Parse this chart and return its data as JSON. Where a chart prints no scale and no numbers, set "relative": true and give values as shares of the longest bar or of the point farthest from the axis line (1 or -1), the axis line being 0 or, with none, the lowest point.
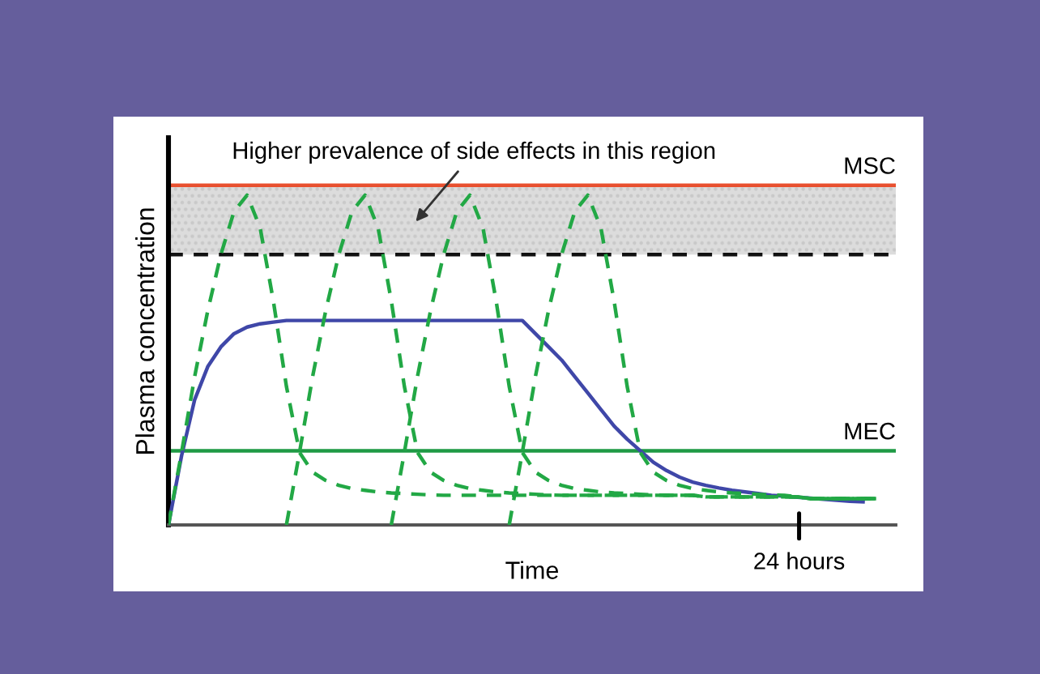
{
  "chart_data": {
    "type": "line",
    "relative": true,
    "xlabel": "Time",
    "ylabel": "Plasma concentration",
    "categories": [
      null,
      null,
      null,
      null,
      null,
      null,
      null,
      null,
      null,
      null,
      null,
      null,
      null,
      null,
      null,
      null,
      null,
      null,
      null,
      null,
      null,
      null,
      null,
      null,
      null,
      null,
      null,
      null,
      null,
      null,
      null,
      null,
      null,
      null,
      null,
      null,
      null,
      null,
      null,
      null,
      null,
      null,
      null,
      null,
      null,
      null,
      null,
      null,
      null,
      null,
      null,
      null,
      null,
      null,
      null,
      null
    ],
    "series": [
      {
        "color": "#3f47a8",
        "line_style": "solid",
        "values": [
          0,
          0.21,
          0.38,
          0.48,
          0.54,
          0.58,
          0.6,
          0.61,
          0.615,
          0.62,
          0.62,
          0.62,
          0.62,
          0.62,
          0.62,
          0.62,
          0.62,
          0.62,
          0.62,
          0.62,
          0.62,
          0.62,
          0.62,
          0.62,
          0.62,
          0.62,
          0.62,
          0.62,
          0.58,
          0.54,
          0.5,
          0.45,
          0.4,
          0.35,
          0.3,
          0.26,
          0.225,
          0.19,
          0.165,
          0.145,
          0.13,
          0.12,
          0.112,
          0.105,
          0.1,
          0.095,
          0.09,
          0.087,
          0.084,
          0.081,
          0.078,
          0.075,
          0.072,
          0.07,
          null,
          null
        ]
      },
      {
        "color": "#22a845",
        "line_style": "dashed",
        "values": [
          0,
          0.22,
          0.45,
          0.65,
          0.82,
          0.95,
          1,
          0.9,
          0.68,
          0.42,
          0.22,
          0.16,
          0.135,
          0.12,
          0.11,
          0.105,
          0.1,
          0.097,
          0.095,
          0.093,
          0.091,
          0.09,
          0.09,
          0.09,
          0.09,
          0.09,
          0.09,
          0.09,
          0.09,
          0.09,
          0.09,
          0.09,
          0.09,
          0.09,
          0.09,
          0.09,
          0.09,
          0.09,
          0.09,
          0.09,
          0.09,
          0.085,
          0.085,
          0.085,
          0.085,
          0.085,
          0.085,
          0.085,
          0.085,
          0.08,
          0.08,
          0.08,
          0.08,
          0.08,
          0.08,
          null
        ]
      },
      {
        "color": "#22a845",
        "line_style": "dashed",
        "values": [
          null,
          null,
          null,
          null,
          null,
          null,
          null,
          null,
          null,
          0,
          0.22,
          0.45,
          0.65,
          0.82,
          0.95,
          1,
          0.9,
          0.68,
          0.42,
          0.22,
          0.16,
          0.135,
          0.12,
          0.11,
          0.105,
          0.1,
          0.097,
          0.095,
          0.093,
          0.091,
          0.09,
          0.09,
          0.09,
          0.09,
          0.09,
          0.09,
          0.09,
          0.09,
          0.09,
          0.09,
          0.09,
          0.085,
          0.085,
          0.085,
          0.085,
          0.085,
          0.085,
          0.085,
          0.085,
          0.08,
          0.08,
          0.08,
          0.08,
          0.08,
          0.08,
          null
        ]
      },
      {
        "color": "#22a845",
        "line_style": "dashed",
        "values": [
          null,
          null,
          null,
          null,
          null,
          null,
          null,
          null,
          null,
          null,
          null,
          null,
          null,
          null,
          null,
          null,
          null,
          0,
          0.22,
          0.45,
          0.65,
          0.82,
          0.95,
          1,
          0.9,
          0.68,
          0.42,
          0.22,
          0.16,
          0.135,
          0.12,
          0.11,
          0.105,
          0.1,
          0.097,
          0.095,
          0.093,
          0.091,
          0.09,
          0.09,
          0.09,
          0.085,
          0.085,
          0.085,
          0.085,
          0.085,
          0.085,
          0.085,
          0.085,
          0.08,
          0.08,
          0.08,
          0.08,
          0.08,
          0.08,
          null
        ]
      },
      {
        "color": "#22a845",
        "line_style": "dashed",
        "values": [
          null,
          null,
          null,
          null,
          null,
          null,
          null,
          null,
          null,
          null,
          null,
          null,
          null,
          null,
          null,
          null,
          null,
          null,
          null,
          null,
          null,
          null,
          null,
          null,
          null,
          null,
          0,
          0.22,
          0.45,
          0.65,
          0.82,
          0.95,
          1,
          0.9,
          0.68,
          0.42,
          0.22,
          0.16,
          0.135,
          0.12,
          0.11,
          0.105,
          0.1,
          0.097,
          0.095,
          0.093,
          0.091,
          0.09,
          0.085,
          0.08,
          0.08,
          0.08,
          0.08,
          0.08,
          0.08,
          null
        ]
      }
    ],
    "ref_lines": [
      {
        "axis": "y",
        "value": 1.03,
        "label": "MSC",
        "color": "#e8502f",
        "line_style": "solid"
      },
      {
        "axis": "y",
        "value": 0.82,
        "color": "#111111",
        "line_style": "dashed"
      },
      {
        "axis": "y",
        "value": 0.225,
        "label": "MEC",
        "color": "#1f9a45",
        "line_style": "solid"
      }
    ],
    "bands": [
      {
        "axis": "y",
        "from": 0.82,
        "to": 1.03,
        "color": "#dcdcdc"
      }
    ],
    "annotations": [
      {
        "text": "Higher prevalence of side effects in this region",
        "y": 0.92
      },
      "24 hours"
    ],
    "legend": false,
    "marker": "none"
  }
}
